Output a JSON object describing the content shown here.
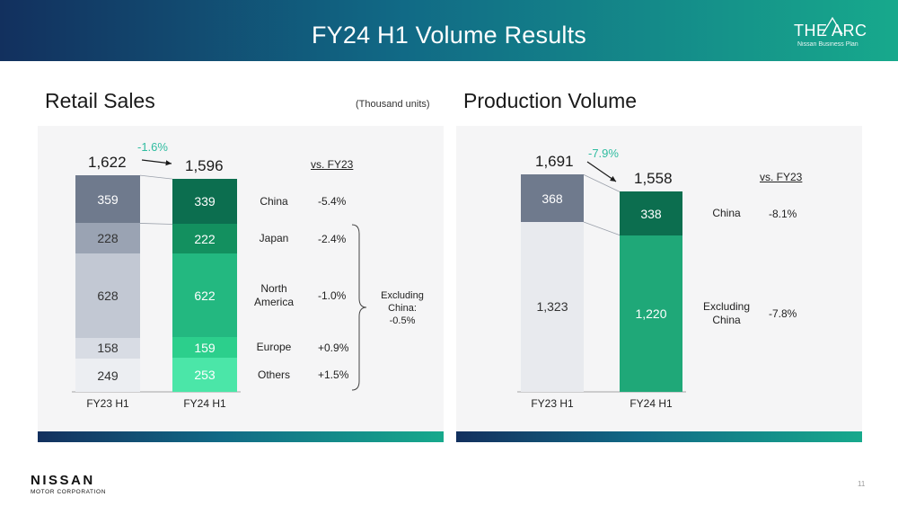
{
  "header": {
    "title": "FY24 H1 Volume Results",
    "logo_word": "THE ARC",
    "logo_sub": "Nissan Business Plan"
  },
  "retail": {
    "title": "Retail Sales",
    "units": "(Thousand units)",
    "vs_label": "vs. FY23",
    "excluding_note": [
      "Excluding",
      "China:",
      "-0.5%"
    ]
  },
  "production": {
    "title": "Production Volume",
    "vs_label": "vs. FY23"
  },
  "footer": {
    "brand": "NISSAN",
    "corp": "MOTOR CORPORATION",
    "page": "11"
  },
  "chart_data": [
    {
      "type": "bar",
      "stacked": true,
      "title": "Retail Sales",
      "units": "Thousand units",
      "categories": [
        "FY23 H1",
        "FY24 H1"
      ],
      "totals": [
        "1,622",
        "1,596"
      ],
      "change": "-1.6%",
      "series": [
        {
          "name": "China",
          "values": [
            359,
            339
          ],
          "value_labels": [
            "359",
            "339"
          ],
          "vs_fy23": "-5.4%"
        },
        {
          "name": "Japan",
          "values": [
            228,
            222
          ],
          "value_labels": [
            "228",
            "222"
          ],
          "vs_fy23": "-2.4%"
        },
        {
          "name": "North America",
          "values": [
            628,
            622
          ],
          "value_labels": [
            "628",
            "622"
          ],
          "vs_fy23": "-1.0%"
        },
        {
          "name": "Europe",
          "values": [
            158,
            159
          ],
          "value_labels": [
            "158",
            "159"
          ],
          "vs_fy23": "+0.9%"
        },
        {
          "name": "Others",
          "values": [
            249,
            253
          ],
          "value_labels": [
            "249",
            "253"
          ],
          "vs_fy23": "+1.5%"
        }
      ],
      "colors": {
        "fy23": [
          "#6f7a8d",
          "#9aa3b3",
          "#c2c8d3",
          "#d8dce4",
          "#eceef2"
        ],
        "fy24": [
          "#0c6e4f",
          "#13905f",
          "#23b880",
          "#2ccf8c",
          "#4be6a8"
        ]
      }
    },
    {
      "type": "bar",
      "stacked": true,
      "title": "Production Volume",
      "categories": [
        "FY23 H1",
        "FY24 H1"
      ],
      "totals": [
        "1,691",
        "1,558"
      ],
      "change": "-7.9%",
      "series": [
        {
          "name": "China",
          "values": [
            368,
            338
          ],
          "value_labels": [
            "368",
            "338"
          ],
          "vs_fy23": "-8.1%"
        },
        {
          "name": "Excluding China",
          "values": [
            1323,
            1220
          ],
          "value_labels": [
            "1,323",
            "1,220"
          ],
          "vs_fy23": "-7.8%"
        }
      ],
      "colors": {
        "fy23": [
          "#6f7a8d",
          "#e8eaee"
        ],
        "fy24": [
          "#0c6e4f",
          "#1fa878"
        ]
      }
    }
  ]
}
